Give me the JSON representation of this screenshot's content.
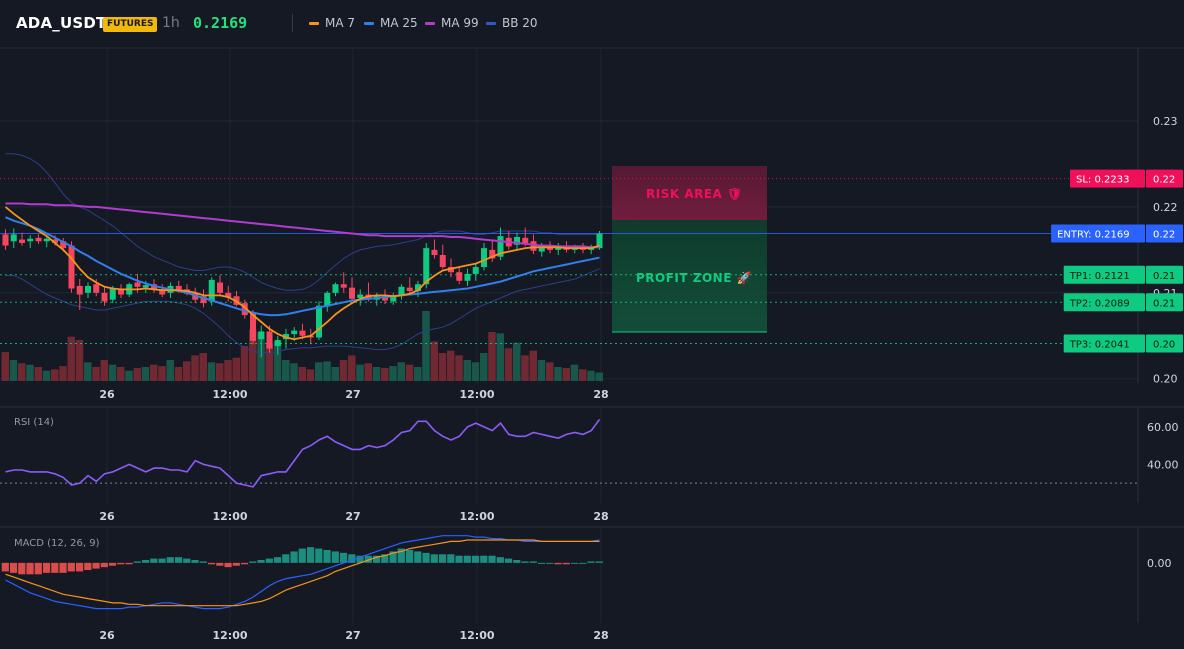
{
  "header": {
    "symbol": "ADA_USDT",
    "badge": "FUTURES",
    "timeframe": "1h",
    "price": "0.2169",
    "legend": [
      {
        "label": "MA 7",
        "color": "#f7931a"
      },
      {
        "label": "MA 25",
        "color": "#2f80ed"
      },
      {
        "label": "MA 99",
        "color": "#b13ccf"
      },
      {
        "label": "BB 20",
        "color": "#3558c4"
      }
    ]
  },
  "colors": {
    "up": "#0ecb81",
    "down": "#f6465d",
    "sl": "#f0105a",
    "entry": "#2962ff",
    "tp": "#0ecb81"
  },
  "x_axis": {
    "labels": [
      "26",
      "12:00",
      "27",
      "12:00",
      "28"
    ]
  },
  "price_pane": {
    "y_ticks": [
      "0.23",
      "0.22",
      "0.21",
      "0.20"
    ],
    "zones": {
      "risk": "RISK AREA 🛡",
      "profit": "PROFIT ZONE 🚀"
    },
    "levels": [
      {
        "id": "sl",
        "label": "SL: 0.2233",
        "value": 0.2233,
        "short": "0.22"
      },
      {
        "id": "entry",
        "label": "ENTRY: 0.2169",
        "value": 0.2169,
        "short": "0.22"
      },
      {
        "id": "tp1",
        "label": "TP1: 0.2121",
        "value": 0.2121,
        "short": "0.21"
      },
      {
        "id": "tp2",
        "label": "TP2: 0.2089",
        "value": 0.2089,
        "short": "0.21"
      },
      {
        "id": "tp3",
        "label": "TP3: 0.2041",
        "value": 0.2041,
        "short": "0.20"
      }
    ]
  },
  "rsi_pane": {
    "label": "RSI (14)",
    "y_ticks": [
      "60.00",
      "40.00"
    ]
  },
  "macd_pane": {
    "label": "MACD (12, 26, 9)",
    "y_ticks": [
      "0.00"
    ]
  },
  "chart_data": {
    "type": "candlestick",
    "ylim": [
      0.1995,
      0.2385
    ],
    "candles_ohlc": [
      [
        0.2168,
        0.2174,
        0.215,
        0.2155
      ],
      [
        0.216,
        0.2175,
        0.2152,
        0.2168
      ],
      [
        0.2162,
        0.217,
        0.2155,
        0.2158
      ],
      [
        0.216,
        0.2167,
        0.2152,
        0.2163
      ],
      [
        0.2164,
        0.2168,
        0.2157,
        0.216
      ],
      [
        0.216,
        0.2166,
        0.2153,
        0.2163
      ],
      [
        0.2162,
        0.2167,
        0.2155,
        0.2158
      ],
      [
        0.216,
        0.2164,
        0.2148,
        0.2152
      ],
      [
        0.2155,
        0.216,
        0.21,
        0.2105
      ],
      [
        0.2108,
        0.2116,
        0.208,
        0.2098
      ],
      [
        0.21,
        0.2112,
        0.2094,
        0.2108
      ],
      [
        0.211,
        0.2116,
        0.2096,
        0.21
      ],
      [
        0.21,
        0.2106,
        0.2085,
        0.209
      ],
      [
        0.2092,
        0.2108,
        0.2088,
        0.2105
      ],
      [
        0.2104,
        0.211,
        0.2094,
        0.2098
      ],
      [
        0.2098,
        0.2112,
        0.2095,
        0.211
      ],
      [
        0.2112,
        0.2122,
        0.21,
        0.2107
      ],
      [
        0.2106,
        0.2114,
        0.21,
        0.2109
      ],
      [
        0.211,
        0.2116,
        0.21,
        0.2104
      ],
      [
        0.2104,
        0.211,
        0.2095,
        0.2098
      ],
      [
        0.21,
        0.2112,
        0.2094,
        0.2108
      ],
      [
        0.2108,
        0.2114,
        0.21,
        0.2104
      ],
      [
        0.2104,
        0.211,
        0.2097,
        0.2099
      ],
      [
        0.21,
        0.2106,
        0.2088,
        0.2092
      ],
      [
        0.2096,
        0.2104,
        0.2083,
        0.2088
      ],
      [
        0.209,
        0.2118,
        0.2085,
        0.2115
      ],
      [
        0.2112,
        0.212,
        0.2096,
        0.21
      ],
      [
        0.21,
        0.2108,
        0.209,
        0.2095
      ],
      [
        0.2096,
        0.2102,
        0.2084,
        0.2086
      ],
      [
        0.2088,
        0.2092,
        0.207,
        0.2074
      ],
      [
        0.2076,
        0.208,
        0.204,
        0.2044
      ],
      [
        0.2046,
        0.2062,
        0.2025,
        0.2055
      ],
      [
        0.2055,
        0.2062,
        0.203,
        0.2035
      ],
      [
        0.2038,
        0.205,
        0.2028,
        0.2045
      ],
      [
        0.2046,
        0.2058,
        0.2035,
        0.2052
      ],
      [
        0.2052,
        0.206,
        0.2044,
        0.2056
      ],
      [
        0.2056,
        0.2064,
        0.2046,
        0.205
      ],
      [
        0.205,
        0.2058,
        0.204,
        0.2048
      ],
      [
        0.2048,
        0.209,
        0.2045,
        0.2085
      ],
      [
        0.2084,
        0.2102,
        0.2078,
        0.21
      ],
      [
        0.21,
        0.2112,
        0.2096,
        0.211
      ],
      [
        0.211,
        0.2124,
        0.21,
        0.2106
      ],
      [
        0.2106,
        0.2118,
        0.209,
        0.2093
      ],
      [
        0.2094,
        0.2104,
        0.2085,
        0.2098
      ],
      [
        0.2098,
        0.2112,
        0.209,
        0.2092
      ],
      [
        0.2092,
        0.21,
        0.2085,
        0.2096
      ],
      [
        0.2096,
        0.2104,
        0.2087,
        0.2091
      ],
      [
        0.209,
        0.21,
        0.2086,
        0.2097
      ],
      [
        0.2097,
        0.211,
        0.2092,
        0.2107
      ],
      [
        0.2106,
        0.2118,
        0.2098,
        0.2102
      ],
      [
        0.2102,
        0.2114,
        0.2095,
        0.211
      ],
      [
        0.211,
        0.2158,
        0.2105,
        0.2152
      ],
      [
        0.215,
        0.2162,
        0.214,
        0.2144
      ],
      [
        0.2144,
        0.2156,
        0.2128,
        0.213
      ],
      [
        0.213,
        0.214,
        0.2118,
        0.2124
      ],
      [
        0.2124,
        0.213,
        0.211,
        0.2114
      ],
      [
        0.2114,
        0.2128,
        0.2108,
        0.2122
      ],
      [
        0.2122,
        0.2134,
        0.2114,
        0.213
      ],
      [
        0.213,
        0.2158,
        0.2126,
        0.2152
      ],
      [
        0.215,
        0.2162,
        0.2136,
        0.214
      ],
      [
        0.2142,
        0.2176,
        0.2138,
        0.2166
      ],
      [
        0.2164,
        0.2172,
        0.215,
        0.2154
      ],
      [
        0.2156,
        0.217,
        0.215,
        0.2165
      ],
      [
        0.2164,
        0.2176,
        0.2154,
        0.2158
      ],
      [
        0.216,
        0.2168,
        0.2145,
        0.2149
      ],
      [
        0.2148,
        0.2158,
        0.2142,
        0.2154
      ],
      [
        0.2154,
        0.216,
        0.2146,
        0.215
      ],
      [
        0.215,
        0.2158,
        0.2144,
        0.2154
      ],
      [
        0.2154,
        0.216,
        0.2147,
        0.215
      ],
      [
        0.215,
        0.2156,
        0.2146,
        0.2153
      ],
      [
        0.2152,
        0.2158,
        0.2146,
        0.215
      ],
      [
        0.215,
        0.2156,
        0.2145,
        0.2154
      ],
      [
        0.2152,
        0.2172,
        0.215,
        0.2169
      ]
    ],
    "volume": [
      0.62,
      0.45,
      0.38,
      0.35,
      0.3,
      0.22,
      0.25,
      0.32,
      0.95,
      0.88,
      0.4,
      0.3,
      0.45,
      0.35,
      0.3,
      0.22,
      0.28,
      0.3,
      0.35,
      0.32,
      0.45,
      0.3,
      0.42,
      0.55,
      0.6,
      0.4,
      0.38,
      0.45,
      0.5,
      0.75,
      1.1,
      1.05,
      0.8,
      0.85,
      0.45,
      0.38,
      0.3,
      0.25,
      0.4,
      0.42,
      0.3,
      0.45,
      0.55,
      0.35,
      0.38,
      0.3,
      0.28,
      0.32,
      0.4,
      0.35,
      0.3,
      1.5,
      0.85,
      0.6,
      0.65,
      0.55,
      0.45,
      0.4,
      0.6,
      1.05,
      1.02,
      0.7,
      0.82,
      0.55,
      0.65,
      0.45,
      0.4,
      0.3,
      0.28,
      0.35,
      0.25,
      0.22,
      0.18
    ],
    "ma7": [
      0.22,
      0.2192,
      0.2185,
      0.2178,
      0.2172,
      0.2166,
      0.2158,
      0.215,
      0.214,
      0.2128,
      0.2118,
      0.2112,
      0.2107,
      0.2105,
      0.2104,
      0.2104,
      0.2104,
      0.2105,
      0.2104,
      0.2103,
      0.2103,
      0.2103,
      0.2102,
      0.21,
      0.2097,
      0.2097,
      0.2097,
      0.2095,
      0.209,
      0.2083,
      0.2074,
      0.2066,
      0.2058,
      0.2052,
      0.2048,
      0.2046,
      0.2048,
      0.205,
      0.2058,
      0.2066,
      0.2075,
      0.2082,
      0.2088,
      0.2093,
      0.2096,
      0.2097,
      0.2097,
      0.2096,
      0.2097,
      0.2099,
      0.2103,
      0.2113,
      0.212,
      0.2126,
      0.2128,
      0.213,
      0.2132,
      0.2134,
      0.2138,
      0.2142,
      0.2146,
      0.2148,
      0.215,
      0.2152,
      0.2153,
      0.2153,
      0.2153,
      0.2153,
      0.2152,
      0.2152,
      0.2152,
      0.2152,
      0.2155
    ],
    "ma25": [
      0.2188,
      0.2184,
      0.2181,
      0.2178,
      0.2174,
      0.2169,
      0.2164,
      0.2159,
      0.2154,
      0.2148,
      0.2143,
      0.2137,
      0.2132,
      0.2127,
      0.2122,
      0.2118,
      0.2114,
      0.2111,
      0.2108,
      0.2106,
      0.2104,
      0.2102,
      0.21,
      0.2097,
      0.2094,
      0.2091,
      0.2088,
      0.2085,
      0.2082,
      0.2079,
      0.2077,
      0.2075,
      0.2074,
      0.2074,
      0.2075,
      0.2077,
      0.2079,
      0.2081,
      0.2083,
      0.2085,
      0.2087,
      0.2089,
      0.2091,
      0.2092,
      0.2093,
      0.2094,
      0.2095,
      0.2096,
      0.2097,
      0.2098,
      0.2099,
      0.21,
      0.2101,
      0.2102,
      0.2103,
      0.2104,
      0.2105,
      0.2107,
      0.2109,
      0.2111,
      0.2113,
      0.2116,
      0.2119,
      0.2122,
      0.2125,
      0.2127,
      0.2129,
      0.2131,
      0.2133,
      0.2135,
      0.2137,
      0.2139,
      0.2141
    ],
    "ma99": [
      0.2204,
      0.2204,
      0.2204,
      0.2203,
      0.2203,
      0.2203,
      0.2202,
      0.2202,
      0.2202,
      0.2201,
      0.22,
      0.22,
      0.2199,
      0.2198,
      0.2197,
      0.2196,
      0.2195,
      0.2194,
      0.2193,
      0.2192,
      0.2191,
      0.219,
      0.2189,
      0.2188,
      0.2187,
      0.2186,
      0.2185,
      0.2184,
      0.2183,
      0.2182,
      0.2181,
      0.218,
      0.2179,
      0.2178,
      0.2177,
      0.2176,
      0.2175,
      0.2174,
      0.2173,
      0.2172,
      0.2171,
      0.217,
      0.2169,
      0.2168,
      0.2167,
      0.2167,
      0.2166,
      0.2166,
      0.2166,
      0.2166,
      0.2166,
      0.2166,
      0.2166,
      0.2166,
      0.2165,
      0.2165,
      0.2164,
      0.2163,
      0.2162,
      0.2161,
      0.216,
      0.2159,
      0.2158,
      0.2157,
      0.2156,
      0.2155,
      0.2155,
      0.2154,
      0.2154,
      0.2154,
      0.2154,
      0.2153,
      0.2153
    ],
    "bb_upper": [
      0.2262,
      0.2262,
      0.226,
      0.2256,
      0.225,
      0.224,
      0.2228,
      0.2215,
      0.2205,
      0.22,
      0.2196,
      0.219,
      0.2184,
      0.2178,
      0.217,
      0.2162,
      0.2154,
      0.2148,
      0.2142,
      0.2138,
      0.2134,
      0.213,
      0.2128,
      0.2126,
      0.2126,
      0.2128,
      0.213,
      0.213,
      0.2128,
      0.2124,
      0.2118,
      0.2112,
      0.2108,
      0.2105,
      0.2103,
      0.2103,
      0.2104,
      0.2108,
      0.2115,
      0.2124,
      0.2132,
      0.214,
      0.2146,
      0.215,
      0.2152,
      0.2154,
      0.2155,
      0.2156,
      0.2158,
      0.216,
      0.2162,
      0.2166,
      0.217,
      0.2172,
      0.2172,
      0.2172,
      0.217,
      0.2168,
      0.2168,
      0.217,
      0.2172,
      0.2172,
      0.2172,
      0.2172,
      0.2172,
      0.217,
      0.217,
      0.2168,
      0.2168,
      0.2168,
      0.2168,
      0.2168,
      0.2168
    ],
    "bb_lower": [
      0.212,
      0.212,
      0.2116,
      0.211,
      0.2104,
      0.2098,
      0.2094,
      0.209,
      0.2086,
      0.2084,
      0.2082,
      0.208,
      0.208,
      0.2082,
      0.2084,
      0.2086,
      0.2088,
      0.209,
      0.209,
      0.209,
      0.209,
      0.2088,
      0.2086,
      0.2082,
      0.2076,
      0.2068,
      0.206,
      0.205,
      0.2042,
      0.2036,
      0.2032,
      0.203,
      0.203,
      0.2032,
      0.2034,
      0.2035,
      0.2036,
      0.2036,
      0.2037,
      0.2038,
      0.2038,
      0.2038,
      0.2037,
      0.2036,
      0.2035,
      0.2034,
      0.2034,
      0.2036,
      0.204,
      0.2046,
      0.2052,
      0.2056,
      0.2058,
      0.206,
      0.2064,
      0.207,
      0.2076,
      0.2082,
      0.2086,
      0.209,
      0.2094,
      0.2098,
      0.2102,
      0.2104,
      0.2106,
      0.2108,
      0.211,
      0.2112,
      0.2114,
      0.2116,
      0.212,
      0.2124,
      0.2128
    ],
    "rsi": {
      "ylim": [
        21,
        69
      ],
      "values": [
        36,
        37,
        37,
        36,
        36,
        36,
        35,
        33,
        29,
        30,
        34,
        31,
        35,
        36,
        38,
        40,
        38,
        36,
        38,
        38,
        37,
        37,
        36,
        42,
        40,
        39,
        38,
        34,
        30,
        29,
        28,
        34,
        35,
        36,
        36,
        42,
        48,
        50,
        53,
        55,
        52,
        50,
        48,
        48,
        50,
        49,
        50,
        53,
        57,
        58,
        63,
        63,
        58,
        55,
        53,
        55,
        60,
        62,
        60,
        58,
        62,
        56,
        55,
        55,
        57,
        56,
        55,
        54,
        56,
        57,
        56,
        58,
        64
      ],
      "hline": 30
    },
    "macd": {
      "ylim": [
        -0.004,
        0.0023
      ],
      "hist": [
        -0.0006,
        -0.0007,
        -0.0008,
        -0.0008,
        -0.0008,
        -0.0007,
        -0.0007,
        -0.0007,
        -0.0006,
        -0.0006,
        -0.0005,
        -0.0004,
        -0.0003,
        -0.0002,
        -0.0001,
        -0.0001,
        0.0001,
        0.0002,
        0.0003,
        0.0003,
        0.0004,
        0.0004,
        0.0003,
        0.0002,
        0.0001,
        -0.0001,
        -0.0002,
        -0.0003,
        -0.0002,
        -0.0001,
        0.0001,
        0.0002,
        0.0003,
        0.0004,
        0.0006,
        0.0008,
        0.001,
        0.0011,
        0.001,
        0.0009,
        0.0008,
        0.0007,
        0.0006,
        0.0005,
        0.0005,
        0.0005,
        0.0006,
        0.0008,
        0.001,
        0.0009,
        0.0008,
        0.0007,
        0.0006,
        0.0006,
        0.0006,
        0.0005,
        0.0005,
        0.0005,
        0.0005,
        0.0005,
        0.0004,
        0.0003,
        0.0002,
        0.0001,
        0.0001,
        0.0,
        0.0,
        -0.0001,
        -0.0001,
        0.0,
        0.0,
        0.0001,
        0.0001
      ],
      "macd_line": [
        -0.0012,
        -0.0015,
        -0.0018,
        -0.0021,
        -0.0023,
        -0.0025,
        -0.0027,
        -0.0028,
        -0.0029,
        -0.003,
        -0.0031,
        -0.0032,
        -0.0032,
        -0.0032,
        -0.0032,
        -0.0031,
        -0.0031,
        -0.003,
        -0.0029,
        -0.0028,
        -0.0028,
        -0.0029,
        -0.003,
        -0.0031,
        -0.0032,
        -0.0032,
        -0.0032,
        -0.0031,
        -0.0029,
        -0.0027,
        -0.0024,
        -0.002,
        -0.0016,
        -0.0013,
        -0.0011,
        -0.001,
        -0.0009,
        -0.0008,
        -0.0006,
        -0.0004,
        -0.0002,
        0.0,
        0.0002,
        0.0004,
        0.0006,
        0.0008,
        0.001,
        0.0012,
        0.0014,
        0.0015,
        0.0016,
        0.0017,
        0.0018,
        0.0019,
        0.0019,
        0.0019,
        0.0019,
        0.0018,
        0.0018,
        0.0017,
        0.0017,
        0.0016,
        0.0016,
        0.0015,
        0.0015,
        0.0015,
        0.0015,
        0.0015,
        0.0015,
        0.0015,
        0.0015,
        0.0015,
        0.0016
      ],
      "signal_line": [
        -0.0008,
        -0.001,
        -0.0012,
        -0.0014,
        -0.0016,
        -0.0018,
        -0.002,
        -0.0022,
        -0.0023,
        -0.0024,
        -0.0025,
        -0.0026,
        -0.0027,
        -0.0028,
        -0.0028,
        -0.0029,
        -0.0029,
        -0.003,
        -0.003,
        -0.003,
        -0.003,
        -0.003,
        -0.003,
        -0.003,
        -0.003,
        -0.003,
        -0.003,
        -0.003,
        -0.003,
        -0.0029,
        -0.0028,
        -0.0027,
        -0.0025,
        -0.0022,
        -0.0019,
        -0.0017,
        -0.0015,
        -0.0013,
        -0.0011,
        -0.0009,
        -0.0006,
        -0.0004,
        -0.0002,
        0.0,
        0.0002,
        0.0004,
        0.0005,
        0.0007,
        0.0008,
        0.001,
        0.0011,
        0.0012,
        0.0013,
        0.0014,
        0.0015,
        0.0015,
        0.0016,
        0.0016,
        0.0016,
        0.0016,
        0.0016,
        0.0016,
        0.0016,
        0.0016,
        0.0016,
        0.0015,
        0.0015,
        0.0015,
        0.0015,
        0.0015,
        0.0015,
        0.0015,
        0.0015
      ]
    }
  }
}
